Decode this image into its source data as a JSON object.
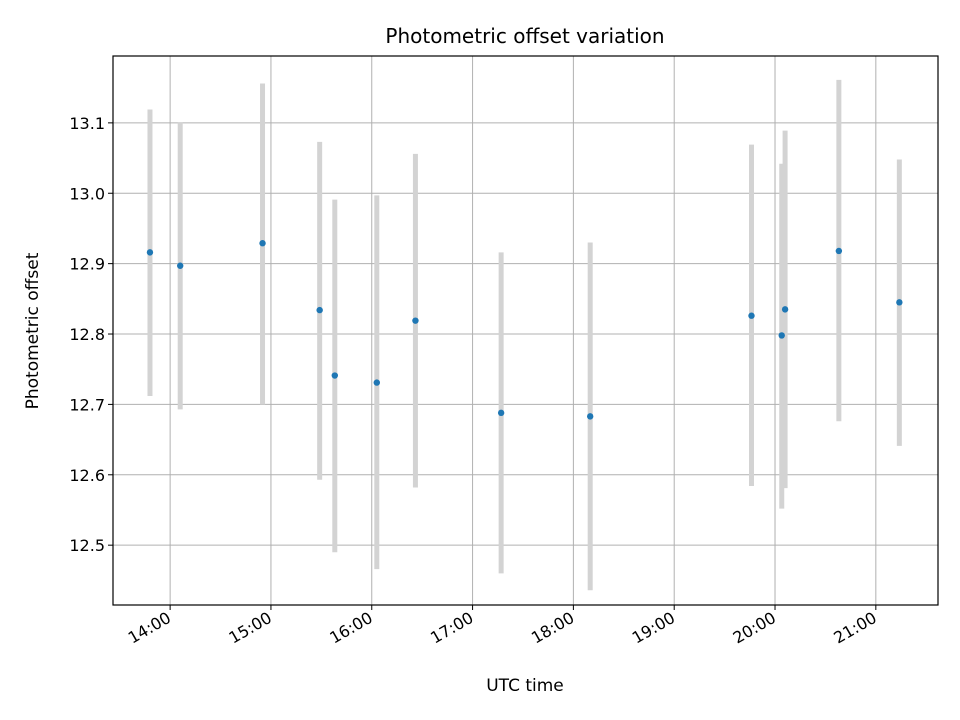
{
  "chart_data": {
    "type": "scatter",
    "title": "Photometric offset variation",
    "xlabel": "UTC time",
    "ylabel": "Photometric offset",
    "x_tick_labels": [
      "14:00",
      "15:00",
      "16:00",
      "17:00",
      "18:00",
      "19:00",
      "20:00",
      "21:00"
    ],
    "y_tick_labels": [
      "12.5",
      "12.6",
      "12.7",
      "12.8",
      "12.9",
      "13.0",
      "13.1"
    ],
    "x_ticks": [
      "14:00",
      "15:00",
      "16:00",
      "17:00",
      "18:00",
      "19:00",
      "20:00",
      "21:00"
    ],
    "y_ticks": [
      12.5,
      12.6,
      12.7,
      12.8,
      12.9,
      13.0,
      13.1
    ],
    "xlim": [
      "13:26",
      "21:37"
    ],
    "ylim": [
      12.415,
      13.195
    ],
    "grid": true,
    "marker_color": "#1f77b4",
    "errorbar_color": "#d3d3d3",
    "points": [
      {
        "time": "13:48",
        "y": 12.916,
        "low": 12.712,
        "high": 13.119
      },
      {
        "time": "14:06",
        "y": 12.897,
        "low": 12.693,
        "high": 13.101
      },
      {
        "time": "14:55",
        "y": 12.929,
        "low": 12.7,
        "high": 13.156
      },
      {
        "time": "15:29",
        "y": 12.834,
        "low": 12.593,
        "high": 13.073
      },
      {
        "time": "15:38",
        "y": 12.741,
        "low": 12.49,
        "high": 12.991
      },
      {
        "time": "16:03",
        "y": 12.731,
        "low": 12.466,
        "high": 12.997
      },
      {
        "time": "16:26",
        "y": 12.819,
        "low": 12.582,
        "high": 13.056
      },
      {
        "time": "17:17",
        "y": 12.688,
        "low": 12.46,
        "high": 12.916
      },
      {
        "time": "18:10",
        "y": 12.683,
        "low": 12.436,
        "high": 12.93
      },
      {
        "time": "19:46",
        "y": 12.826,
        "low": 12.584,
        "high": 13.069
      },
      {
        "time": "20:04",
        "y": 12.798,
        "low": 12.552,
        "high": 13.042
      },
      {
        "time": "20:06",
        "y": 12.835,
        "low": 12.581,
        "high": 13.089
      },
      {
        "time": "20:38",
        "y": 12.918,
        "low": 12.676,
        "high": 13.161
      },
      {
        "time": "21:14",
        "y": 12.845,
        "low": 12.641,
        "high": 13.048
      }
    ]
  }
}
